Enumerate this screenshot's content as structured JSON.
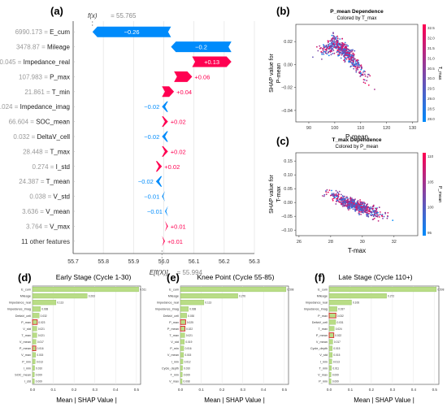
{
  "panel_labels": {
    "a": "(a)",
    "b": "(b)",
    "c": "(c)",
    "d": "(d)",
    "e": "(e)",
    "f": "(f)"
  },
  "colors": {
    "pos": "#ff0051",
    "neg": "#008bfb",
    "bar_green": "#b9dd86",
    "bar_green_stroke": "#7fb34a",
    "grid": "#e6e6e6",
    "axis": "#444444",
    "highlight": "#d62728"
  },
  "chart_data": [
    {
      "id": "a",
      "type": "bar",
      "subtype": "shap-waterfall",
      "fx_label": "f(x)",
      "fx_value": "= 55.765",
      "efx_label": "E[f(X)]",
      "efx_value": "= 55.994",
      "xticks": [
        "55.7",
        "55.8",
        "55.9",
        "56.0",
        "56.1",
        "56.2",
        "56.3"
      ],
      "xlim": [
        55.7,
        56.3
      ],
      "base": 55.994,
      "features": [
        {
          "value": "6990.173",
          "name": "E_cum",
          "contrib": -0.26,
          "label": "−0.26"
        },
        {
          "value": "3478.87",
          "name": "Mileage",
          "contrib": -0.2,
          "label": "−0.2"
        },
        {
          "value": "0.045",
          "name": "Impedance_real",
          "contrib": 0.13,
          "label": "+0.13"
        },
        {
          "value": "107.983",
          "name": "P_max",
          "contrib": 0.06,
          "label": "+0.06"
        },
        {
          "value": "21.861",
          "name": "T_min",
          "contrib": 0.04,
          "label": "+0.04"
        },
        {
          "value": "0.024",
          "name": "Impedance_imag",
          "contrib": -0.02,
          "label": "−0.02"
        },
        {
          "value": "66.604",
          "name": "SOC_mean",
          "contrib": 0.02,
          "label": "+0.02"
        },
        {
          "value": "0.032",
          "name": "DeltaV_cell",
          "contrib": -0.02,
          "label": "−0.02"
        },
        {
          "value": "28.448",
          "name": "T_max",
          "contrib": 0.02,
          "label": "+0.02"
        },
        {
          "value": "0.274",
          "name": "I_std",
          "contrib": 0.02,
          "label": "+0.02"
        },
        {
          "value": "24.387",
          "name": "T_mean",
          "contrib": -0.02,
          "label": "−0.02"
        },
        {
          "value": "0.038",
          "name": "V_std",
          "contrib": -0.01,
          "label": "−0.01"
        },
        {
          "value": "3.636",
          "name": "V_mean",
          "contrib": -0.01,
          "label": "−0.01"
        },
        {
          "value": "3.764",
          "name": "V_max",
          "contrib": 0.01,
          "label": "+0.01"
        },
        {
          "value": "",
          "name": "11 other features",
          "contrib": 0.01,
          "label": "+0.01"
        }
      ]
    },
    {
      "id": "b",
      "type": "scatter",
      "title": "P_mean Dependence",
      "subtitle": "Colored by T_max",
      "xlabel": "P-mean",
      "ylabel": "SHAP value for P-mean",
      "xticks": [
        "90",
        "100",
        "110",
        "120",
        "130"
      ],
      "xlim": [
        85,
        132
      ],
      "yticks": [
        "0.02",
        "0.00",
        "−0.02",
        "−0.04"
      ],
      "yticks_values": [
        0.02,
        0,
        -0.02,
        -0.04
      ],
      "ylim": [
        -0.05,
        0.035
      ],
      "colorbar_label": "T_max",
      "colorbar_ticks": [
        "32.5",
        "32.0",
        "31.5",
        "31.0",
        "30.5",
        "30.0",
        "29.5",
        "29.0",
        "28.5",
        "28.0"
      ],
      "trend": {
        "x": [
          90,
          95,
          100,
          105,
          110,
          115,
          120,
          125,
          128
        ],
        "y": [
          0.005,
          0.012,
          0.018,
          0.01,
          -0.005,
          -0.015,
          -0.022,
          -0.028,
          -0.033
        ]
      }
    },
    {
      "id": "c",
      "type": "scatter",
      "title": "T_max Dependence",
      "subtitle": "Colored by P_mean",
      "xlabel": "T-max",
      "ylabel": "SHAP value for T-max",
      "xticks": [
        "26",
        "28",
        "30",
        "32"
      ],
      "xlim": [
        25.8,
        33.5
      ],
      "yticks": [
        "0.15",
        "0.10",
        "0.05",
        "0.00",
        "−0.05",
        "−0.10"
      ],
      "yticks_values": [
        0.15,
        0.1,
        0.05,
        0,
        -0.05,
        -0.1
      ],
      "ylim": [
        -0.12,
        0.18
      ],
      "colorbar_label": "P_mean",
      "colorbar_ticks": [
        "110",
        "105",
        "100",
        "95"
      ],
      "trend": {
        "x": [
          26,
          27,
          28,
          29,
          30,
          31,
          32,
          33
        ],
        "y": [
          0.09,
          0.06,
          0.03,
          0.0,
          -0.02,
          -0.04,
          -0.055,
          -0.07
        ]
      }
    },
    {
      "id": "d",
      "type": "bar",
      "orientation": "horizontal",
      "title": "Early Stage (Cycle 1-30)",
      "xlabel": "Mean | SHAP Value |",
      "xticks": [
        "0.0",
        "0.1",
        "0.2",
        "0.3",
        "0.4",
        "0.5"
      ],
      "xlim": [
        0,
        0.52
      ],
      "categories": [
        "E_cum",
        "Mileage",
        "Impedance_real",
        "Impedance_imag",
        "DeltaV_cell",
        "P_max",
        "V_std",
        "T_max",
        "V_mean",
        "P_mean",
        "V_max",
        "P_min",
        "I_min",
        "SOC_mean",
        "I_std"
      ],
      "values": [
        0.511,
        0.263,
        0.113,
        0.038,
        0.032,
        0.023,
        0.021,
        0.021,
        0.017,
        0.016,
        0.015,
        0.013,
        0.01,
        0.009,
        0.009
      ],
      "value_labels": [
        "0.511",
        "0.263",
        "0.113",
        "0.038",
        "0.032",
        "0.023",
        "0.021",
        "0.021",
        "0.017",
        "0.016",
        "0.015",
        "0.013",
        "0.010",
        "0.009",
        "0.009"
      ],
      "highlight": [
        "P_max",
        "P_mean"
      ]
    },
    {
      "id": "e",
      "type": "bar",
      "orientation": "horizontal",
      "title": "Knee Point (Cycle 55-85)",
      "xlabel": "Mean | SHAP Value |",
      "xticks": [
        "0.0",
        "0.1",
        "0.2",
        "0.3",
        "0.4",
        "0.5"
      ],
      "xlim": [
        0,
        0.52
      ],
      "categories": [
        "E_cum",
        "Mileage",
        "Impedance_real",
        "Impedance_imag",
        "DeltaV_cell",
        "P_max",
        "P_mean",
        "T_max",
        "V_std",
        "P_min",
        "V_mean",
        "I_min",
        "Cycle_depth",
        "T_min",
        "V_max"
      ],
      "values": [
        0.508,
        0.276,
        0.113,
        0.038,
        0.03,
        0.025,
        0.022,
        0.021,
        0.019,
        0.016,
        0.015,
        0.012,
        0.01,
        0.009,
        0.008
      ],
      "value_labels": [
        "0.508",
        "0.276",
        "0.113",
        "0.038",
        "0.030",
        "0.025",
        "0.022",
        "0.021",
        "0.019",
        "0.016",
        "0.015",
        "0.012",
        "0.010",
        "0.009",
        "0.008"
      ],
      "highlight": [
        "P_max",
        "P_mean"
      ]
    },
    {
      "id": "f",
      "type": "bar",
      "orientation": "horizontal",
      "title": "Late Stage (Cycle 110+)",
      "xlabel": "Mean | SHAP Value |",
      "xticks": [
        "0.0",
        "0.1",
        "0.2",
        "0.3",
        "0.4",
        "0.5"
      ],
      "xlim": [
        0,
        0.52
      ],
      "categories": [
        "E_cum",
        "Mileage",
        "Impedance_real",
        "Impedance_imag",
        "P_max",
        "DeltaV_cell",
        "T_max",
        "P_mean",
        "V_mean",
        "Cycle_depth",
        "V_std",
        "I_min",
        "T_min",
        "V_max",
        "P_min"
      ],
      "values": [
        0.508,
        0.272,
        0.106,
        0.037,
        0.032,
        0.031,
        0.024,
        0.022,
        0.017,
        0.015,
        0.015,
        0.013,
        0.011,
        0.009,
        0.009
      ],
      "value_labels": [
        "0.508",
        "0.272",
        "0.106",
        "0.037",
        "0.032",
        "0.031",
        "0.024",
        "0.022",
        "0.017",
        "0.015",
        "0.015",
        "0.013",
        "0.011",
        "0.009",
        "0.009"
      ],
      "highlight": [
        "P_max",
        "P_mean"
      ]
    }
  ]
}
